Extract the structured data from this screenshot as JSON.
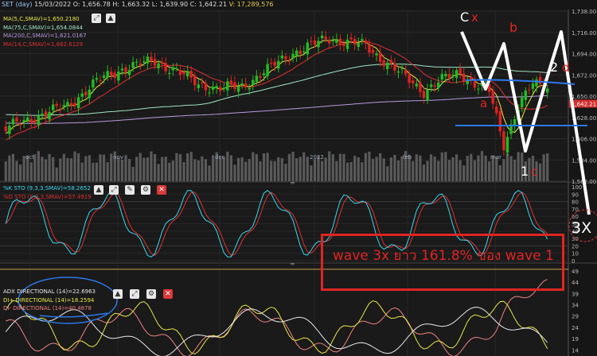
{
  "header": {
    "symbol": "SET (day)",
    "date": "15/03/2022",
    "o_label": "O:",
    "o_value": "1,656.78",
    "h_label": "H:",
    "h_value": "1,663.32",
    "l_label": "L:",
    "l_value": "1,639.90",
    "c_label": "C:",
    "c_value": "1,642.21",
    "v_label": "V:",
    "v_value": "17,289,576"
  },
  "price_panel": {
    "legend": [
      {
        "text": "MA(5,C,SMAV)=1,650.2180",
        "color": "#e8e84a"
      },
      {
        "text": "MA(75,C,SMAV)=1,654.0844",
        "color": "#9ee8c8"
      },
      {
        "text": "MA(200,C,SMAV)=1,621.0167",
        "color": "#b89be0"
      },
      {
        "text": "MA(14,C,SMAV)=1,662.6129",
        "color": "#e03030"
      }
    ],
    "y_ticks": [
      "1,738.00",
      "1,716.00",
      "1,694.00",
      "1,672.00",
      "1,650.00",
      "1,628.00",
      "1,606.00",
      "1,584.00",
      "1,562.00"
    ],
    "last_price": "1,642.21",
    "x_labels": [
      "oct",
      "nov",
      "dec",
      "2022",
      "feb",
      "mar"
    ]
  },
  "sto_panel": {
    "legend": [
      {
        "text": "%K STO (9,3,3,SMAV)=58.2652",
        "color": "#38d8f0"
      },
      {
        "text": "%D STO (9,3,3,SMAV)=57.4919",
        "color": "#e03030"
      }
    ],
    "y_ticks": [
      "100",
      "90",
      "80",
      "70",
      "60",
      "50",
      "40",
      "30",
      "20",
      "10",
      "0"
    ]
  },
  "adx_panel": {
    "legend": [
      {
        "text": "ADX DIRECTIONAL (14)=22.6963",
        "color": "#e8e8e8"
      },
      {
        "text": "DI+ DIRECTIONAL (14)=18.2594",
        "color": "#e8e84a"
      },
      {
        "text": "DI- DIRECTIONAL (14)=40.4878",
        "color": "#f08080"
      }
    ],
    "y_ticks": [
      "49",
      "44",
      "39",
      "34",
      "29",
      "24",
      "19",
      "14"
    ]
  },
  "annotations": {
    "wave_labels": [
      "C",
      "x",
      "b",
      "a",
      "2",
      "d",
      "1",
      "c",
      "3X"
    ],
    "note": "wave 3x ยาว 161.8% ของ wave 1"
  },
  "colors": {
    "up": "#22bb22",
    "down": "#dd2222",
    "bg": "#161616",
    "annotation": "#e02424",
    "drawing_white": "#ffffff",
    "drawing_blue": "#2c78e8"
  },
  "chart_data": [
    {
      "type": "line",
      "title": "SET (day)",
      "x_axis": [
        "oct",
        "nov",
        "dec",
        "2022",
        "feb",
        "mar"
      ],
      "ylim": [
        1562,
        1738
      ],
      "series": [
        {
          "name": "MA(5,C,SMAV)",
          "last": 1650.218
        },
        {
          "name": "MA(75,C,SMAV)",
          "last": 1654.0844
        },
        {
          "name": "MA(200,C,SMAV)",
          "last": 1621.0167
        },
        {
          "name": "MA(14,C,SMAV)",
          "last": 1662.6129
        }
      ]
    },
    {
      "type": "line",
      "ylim": [
        0,
        100
      ],
      "series": [
        {
          "name": "%K STO (9,3,3,SMAV)",
          "last": 58.2652
        },
        {
          "name": "%D STO (9,3,3,SMAV)",
          "last": 57.4919
        }
      ]
    },
    {
      "type": "line",
      "ylim": [
        14,
        49
      ],
      "series": [
        {
          "name": "ADX DIRECTIONAL (14)",
          "last": 22.6963
        },
        {
          "name": "DI+ DIRECTIONAL (14)",
          "last": 18.2594
        },
        {
          "name": "DI- DIRECTIONAL (14)",
          "last": 40.4878
        }
      ]
    }
  ]
}
